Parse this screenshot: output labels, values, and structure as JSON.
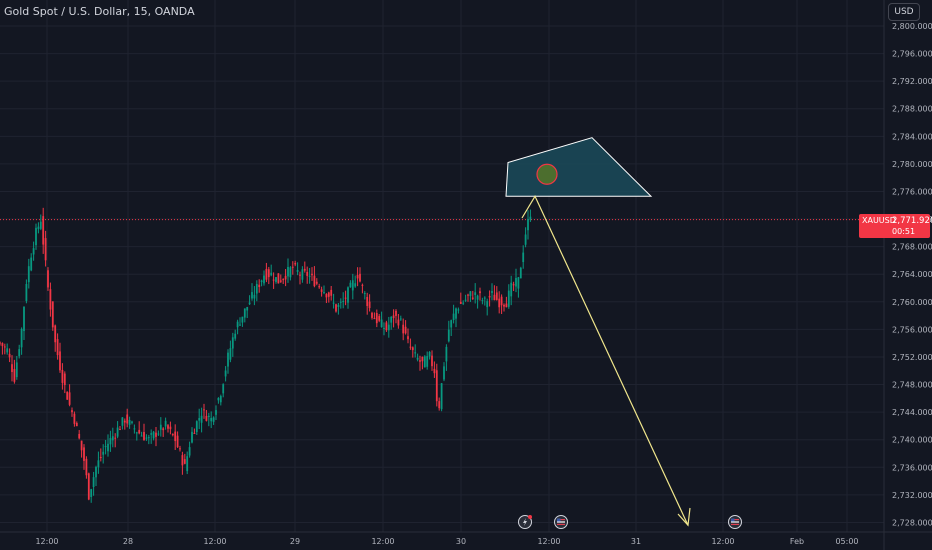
{
  "header": {
    "title": "Gold Spot / U.S. Dollar, 15, OANDA"
  },
  "price_axis": {
    "currency": "USD",
    "ticks": [
      "2,800.000",
      "2,796.000",
      "2,792.000",
      "2,788.000",
      "2,784.000",
      "2,780.000",
      "2,776.000",
      "2,772.000",
      "2,768.000",
      "2,764.000",
      "2,760.000",
      "2,756.000",
      "2,752.000",
      "2,748.000",
      "2,744.000",
      "2,740.000",
      "2,736.000",
      "2,732.000",
      "2,728.000"
    ]
  },
  "time_axis": {
    "labels": [
      "12:00",
      "28",
      "12:00",
      "29",
      "12:00",
      "30",
      "12:00",
      "31",
      "12:00",
      "Feb",
      "05:00"
    ]
  },
  "last_price": {
    "symbol": "XAUUSD",
    "value": "2,771.920",
    "countdown": "00:51"
  },
  "colors": {
    "background": "#131722",
    "up": "#089981",
    "down": "#f23645",
    "zone_fill": "#1b4b5a",
    "zone_stroke": "#ffffff",
    "arrow": "#f0e68c",
    "marker": "#4c6e2e"
  },
  "events": [
    {
      "icon": "lightning-icon"
    },
    {
      "icon": "us-flag-icon"
    },
    {
      "icon": "us-flag-icon"
    }
  ],
  "chart_data": {
    "type": "candlestick",
    "title": "Gold Spot / U.S. Dollar, 15, OANDA",
    "xlabel": "",
    "ylabel": "",
    "ylim": [
      2726.5,
      2801.5
    ],
    "grid": true,
    "current_price": 2771.92,
    "anchors": [
      [
        0,
        2754
      ],
      [
        3,
        2753
      ],
      [
        6,
        2749
      ],
      [
        9,
        2756
      ],
      [
        11,
        2763
      ],
      [
        13,
        2767
      ],
      [
        15,
        2770
      ],
      [
        17,
        2772
      ],
      [
        20,
        2762
      ],
      [
        23,
        2754
      ],
      [
        26,
        2749
      ],
      [
        29,
        2745
      ],
      [
        31,
        2743
      ],
      [
        33,
        2740
      ],
      [
        35,
        2737
      ],
      [
        37,
        2732
      ],
      [
        40,
        2736
      ],
      [
        44,
        2739
      ],
      [
        48,
        2741
      ],
      [
        52,
        2743
      ],
      [
        55,
        2742
      ],
      [
        58,
        2741
      ],
      [
        62,
        2740
      ],
      [
        65,
        2741
      ],
      [
        69,
        2742
      ],
      [
        73,
        2740
      ],
      [
        77,
        2736
      ],
      [
        80,
        2741
      ],
      [
        84,
        2744
      ],
      [
        88,
        2743
      ],
      [
        92,
        2747
      ],
      [
        95,
        2752
      ],
      [
        98,
        2756
      ],
      [
        101,
        2758
      ],
      [
        104,
        2760
      ],
      [
        107,
        2762
      ],
      [
        110,
        2764
      ],
      [
        113,
        2764
      ],
      [
        116,
        2763
      ],
      [
        119,
        2764
      ],
      [
        122,
        2765
      ],
      [
        125,
        2764
      ],
      [
        128,
        2764
      ],
      [
        131,
        2763
      ],
      [
        134,
        2762
      ],
      [
        137,
        2761
      ],
      [
        140,
        2759
      ],
      [
        143,
        2760
      ],
      [
        146,
        2762
      ],
      [
        149,
        2764
      ],
      [
        152,
        2761
      ],
      [
        155,
        2758
      ],
      [
        158,
        2757
      ],
      [
        161,
        2756
      ],
      [
        164,
        2758
      ],
      [
        167,
        2757
      ],
      [
        170,
        2754
      ],
      [
        173,
        2752
      ],
      [
        176,
        2751
      ],
      [
        179,
        2752
      ],
      [
        181,
        2750
      ],
      [
        182,
        2746
      ],
      [
        183,
        2745
      ],
      [
        185,
        2751
      ],
      [
        187,
        2756
      ],
      [
        190,
        2759
      ],
      [
        193,
        2760
      ],
      [
        196,
        2761
      ],
      [
        199,
        2761
      ],
      [
        202,
        2760
      ],
      [
        205,
        2761
      ],
      [
        208,
        2760
      ],
      [
        211,
        2760
      ],
      [
        213,
        2762
      ],
      [
        216,
        2763
      ],
      [
        219,
        2770
      ],
      [
        221,
        2773
      ]
    ],
    "drawings": [
      {
        "type": "polygon",
        "points": [
          [
            0,
            2780.2
          ],
          [
            1,
            2783.8
          ],
          [
            2,
            2775.3
          ],
          [
            3,
            2775.3
          ]
        ]
      },
      {
        "type": "arrow",
        "from": 2775.3,
        "to": 2727.6
      },
      {
        "type": "marker",
        "price": 2778.5
      }
    ]
  }
}
